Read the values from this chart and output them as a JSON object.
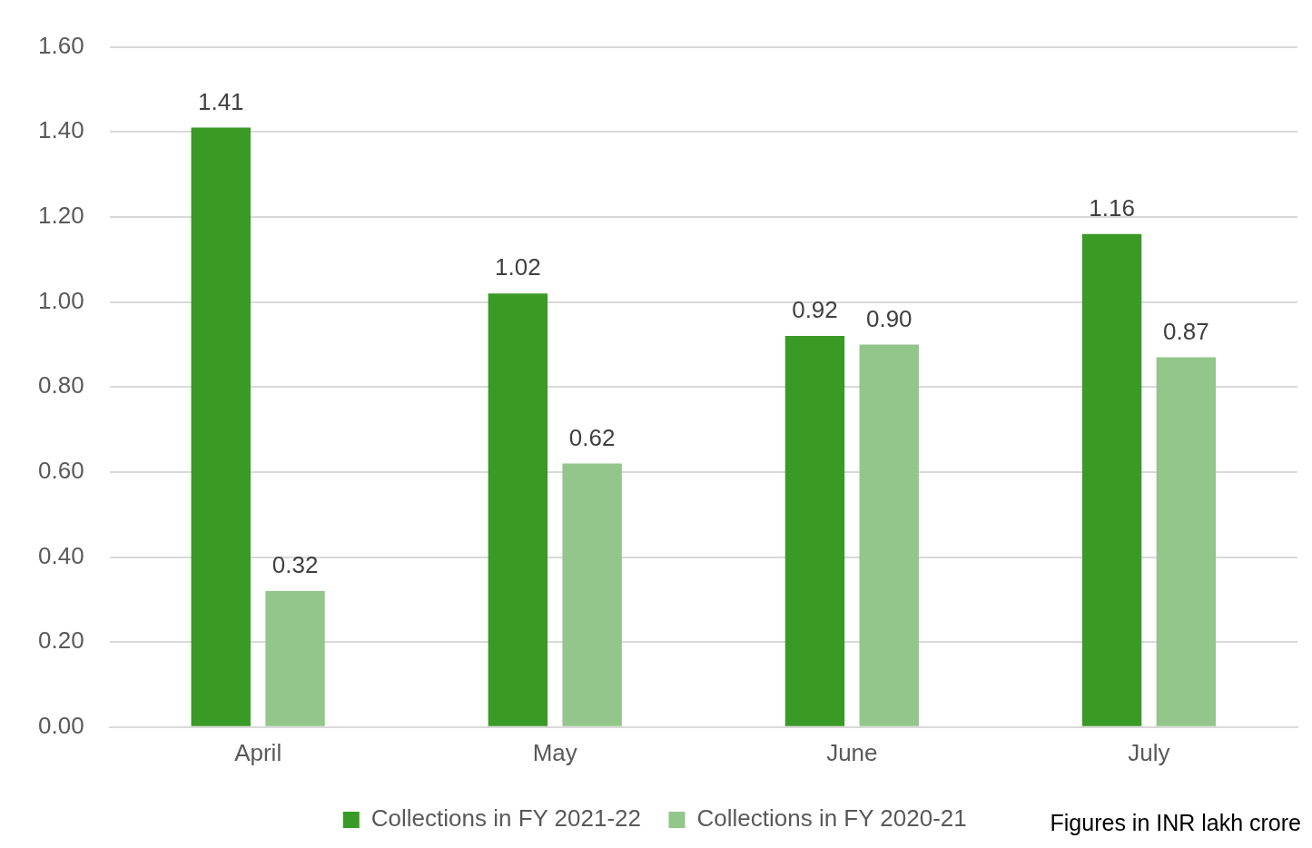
{
  "chart_data": {
    "type": "bar",
    "categories": [
      "April",
      "May",
      "June",
      "July"
    ],
    "series": [
      {
        "name": "Collections in FY 2021-22",
        "color": "#3a9a26",
        "values": [
          1.41,
          1.02,
          0.92,
          1.16
        ],
        "value_labels": [
          "1.41",
          "1.02",
          "0.92",
          "1.16"
        ]
      },
      {
        "name": "Collections in FY 2020-21",
        "color": "#92c68a",
        "values": [
          0.32,
          0.62,
          0.9,
          0.87
        ],
        "value_labels": [
          "0.32",
          "0.62",
          "0.90",
          "0.87"
        ]
      }
    ],
    "ylim": [
      0,
      1.6
    ],
    "yticks": [
      {
        "value": 0,
        "label": "0.00"
      },
      {
        "value": 0.2,
        "label": "0.20"
      },
      {
        "value": 0.4,
        "label": "0.40"
      },
      {
        "value": 0.6,
        "label": "0.60"
      },
      {
        "value": 0.8,
        "label": "0.80"
      },
      {
        "value": 1,
        "label": "1.00"
      },
      {
        "value": 1.2,
        "label": "1.20"
      },
      {
        "value": 1.4,
        "label": "1.40"
      },
      {
        "value": 1.6,
        "label": "1.60"
      }
    ],
    "grid": "y",
    "legend": "bottom",
    "annotations": [
      "Figures in INR lakh crore"
    ]
  }
}
